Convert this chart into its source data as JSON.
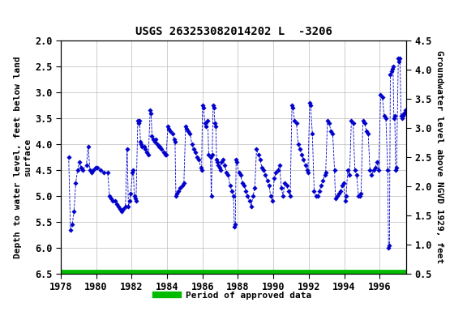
{
  "title": "USGS 263253082014202 L  -3206",
  "ylabel_left": "Depth to water level, feet below land\nsurface",
  "ylabel_right": "Groundwater level above NGVD 1929, feet",
  "xlim": [
    1978,
    1997.5
  ],
  "ylim_left": [
    6.5,
    2.0
  ],
  "ylim_right": [
    0.5,
    4.5
  ],
  "yticks_left": [
    2.0,
    2.5,
    3.0,
    3.5,
    4.0,
    4.5,
    5.0,
    5.5,
    6.0,
    6.5
  ],
  "yticks_right": [
    0.5,
    1.0,
    1.5,
    2.0,
    2.5,
    3.0,
    3.5,
    4.0,
    4.5
  ],
  "xticks": [
    1978,
    1980,
    1982,
    1984,
    1986,
    1988,
    1990,
    1992,
    1994,
    1996
  ],
  "data_color": "#0000cc",
  "legend_color": "#00bb00",
  "legend_label": "Period of approved data",
  "background_color": "#ffffff",
  "grid_color": "#bbbbbb",
  "title_fontsize": 10,
  "axis_fontsize": 8,
  "tick_fontsize": 8.5,
  "raw_data": [
    [
      1978.45,
      4.25
    ],
    [
      1978.55,
      5.65
    ],
    [
      1978.65,
      5.55
    ],
    [
      1978.75,
      5.3
    ],
    [
      1978.85,
      4.75
    ],
    [
      1978.95,
      4.5
    ],
    [
      1979.05,
      4.35
    ],
    [
      1979.15,
      4.45
    ],
    [
      1979.25,
      4.5
    ],
    [
      1979.45,
      4.4
    ],
    [
      1979.55,
      4.05
    ],
    [
      1979.65,
      4.5
    ],
    [
      1979.75,
      4.55
    ],
    [
      1979.85,
      4.5
    ],
    [
      1979.95,
      4.45
    ],
    [
      1980.05,
      4.45
    ],
    [
      1980.25,
      4.5
    ],
    [
      1980.45,
      4.55
    ],
    [
      1980.65,
      4.55
    ],
    [
      1980.75,
      5.0
    ],
    [
      1980.85,
      5.05
    ],
    [
      1980.95,
      5.1
    ],
    [
      1981.05,
      5.1
    ],
    [
      1981.15,
      5.15
    ],
    [
      1981.25,
      5.2
    ],
    [
      1981.35,
      5.25
    ],
    [
      1981.45,
      5.3
    ],
    [
      1981.55,
      5.25
    ],
    [
      1981.65,
      5.2
    ],
    [
      1981.75,
      4.1
    ],
    [
      1981.82,
      5.2
    ],
    [
      1981.88,
      5.1
    ],
    [
      1981.95,
      4.95
    ],
    [
      1982.05,
      4.55
    ],
    [
      1982.1,
      4.5
    ],
    [
      1982.15,
      5.0
    ],
    [
      1982.2,
      5.05
    ],
    [
      1982.25,
      5.1
    ],
    [
      1982.35,
      3.55
    ],
    [
      1982.4,
      3.6
    ],
    [
      1982.45,
      3.55
    ],
    [
      1982.5,
      3.95
    ],
    [
      1982.55,
      4.0
    ],
    [
      1982.6,
      4.05
    ],
    [
      1982.7,
      4.05
    ],
    [
      1982.75,
      4.1
    ],
    [
      1982.85,
      4.15
    ],
    [
      1982.95,
      4.2
    ],
    [
      1983.05,
      3.35
    ],
    [
      1983.1,
      3.4
    ],
    [
      1983.15,
      3.85
    ],
    [
      1983.2,
      3.9
    ],
    [
      1983.3,
      3.95
    ],
    [
      1983.35,
      3.9
    ],
    [
      1983.45,
      4.0
    ],
    [
      1983.55,
      4.05
    ],
    [
      1983.6,
      4.05
    ],
    [
      1983.7,
      4.1
    ],
    [
      1983.8,
      4.15
    ],
    [
      1983.9,
      4.2
    ],
    [
      1983.95,
      4.2
    ],
    [
      1984.05,
      3.65
    ],
    [
      1984.1,
      3.7
    ],
    [
      1984.2,
      3.75
    ],
    [
      1984.3,
      3.8
    ],
    [
      1984.4,
      3.9
    ],
    [
      1984.45,
      3.95
    ],
    [
      1984.5,
      5.0
    ],
    [
      1984.55,
      4.95
    ],
    [
      1984.65,
      4.9
    ],
    [
      1984.75,
      4.85
    ],
    [
      1984.85,
      4.8
    ],
    [
      1984.95,
      4.75
    ],
    [
      1985.05,
      3.65
    ],
    [
      1985.1,
      3.7
    ],
    [
      1985.2,
      3.75
    ],
    [
      1985.3,
      3.8
    ],
    [
      1985.4,
      4.0
    ],
    [
      1985.5,
      4.1
    ],
    [
      1985.6,
      4.15
    ],
    [
      1985.7,
      4.25
    ],
    [
      1985.8,
      4.3
    ],
    [
      1985.9,
      4.45
    ],
    [
      1985.95,
      4.5
    ],
    [
      1986.0,
      3.25
    ],
    [
      1986.05,
      3.3
    ],
    [
      1986.15,
      3.6
    ],
    [
      1986.2,
      3.65
    ],
    [
      1986.3,
      3.55
    ],
    [
      1986.35,
      4.2
    ],
    [
      1986.45,
      4.25
    ],
    [
      1986.5,
      5.0
    ],
    [
      1986.55,
      4.2
    ],
    [
      1986.6,
      3.25
    ],
    [
      1986.65,
      3.3
    ],
    [
      1986.7,
      3.6
    ],
    [
      1986.75,
      3.65
    ],
    [
      1986.8,
      4.3
    ],
    [
      1986.85,
      4.35
    ],
    [
      1986.9,
      4.4
    ],
    [
      1986.95,
      4.45
    ],
    [
      1987.0,
      4.5
    ],
    [
      1987.05,
      4.35
    ],
    [
      1987.15,
      4.3
    ],
    [
      1987.25,
      4.4
    ],
    [
      1987.35,
      4.55
    ],
    [
      1987.45,
      4.6
    ],
    [
      1987.55,
      4.8
    ],
    [
      1987.65,
      4.9
    ],
    [
      1987.75,
      5.0
    ],
    [
      1987.8,
      5.6
    ],
    [
      1987.85,
      5.55
    ],
    [
      1987.9,
      4.3
    ],
    [
      1987.95,
      4.35
    ],
    [
      1988.05,
      4.55
    ],
    [
      1988.15,
      4.6
    ],
    [
      1988.25,
      4.75
    ],
    [
      1988.35,
      4.8
    ],
    [
      1988.45,
      4.9
    ],
    [
      1988.55,
      5.0
    ],
    [
      1988.65,
      5.1
    ],
    [
      1988.75,
      5.2
    ],
    [
      1988.85,
      5.0
    ],
    [
      1988.95,
      4.85
    ],
    [
      1989.05,
      4.1
    ],
    [
      1989.15,
      4.2
    ],
    [
      1989.25,
      4.3
    ],
    [
      1989.35,
      4.45
    ],
    [
      1989.45,
      4.5
    ],
    [
      1989.55,
      4.6
    ],
    [
      1989.65,
      4.7
    ],
    [
      1989.75,
      4.8
    ],
    [
      1989.85,
      5.0
    ],
    [
      1989.95,
      5.1
    ],
    [
      1990.05,
      4.65
    ],
    [
      1990.15,
      4.55
    ],
    [
      1990.25,
      4.5
    ],
    [
      1990.35,
      4.4
    ],
    [
      1990.45,
      4.85
    ],
    [
      1990.55,
      5.0
    ],
    [
      1990.65,
      4.75
    ],
    [
      1990.75,
      4.8
    ],
    [
      1990.85,
      4.9
    ],
    [
      1990.95,
      5.0
    ],
    [
      1991.05,
      3.25
    ],
    [
      1991.1,
      3.3
    ],
    [
      1991.2,
      3.55
    ],
    [
      1991.3,
      3.6
    ],
    [
      1991.4,
      4.0
    ],
    [
      1991.5,
      4.1
    ],
    [
      1991.6,
      4.2
    ],
    [
      1991.7,
      4.3
    ],
    [
      1991.8,
      4.4
    ],
    [
      1991.9,
      4.5
    ],
    [
      1991.95,
      4.55
    ],
    [
      1992.05,
      3.2
    ],
    [
      1992.1,
      3.25
    ],
    [
      1992.2,
      3.8
    ],
    [
      1992.3,
      4.9
    ],
    [
      1992.4,
      5.0
    ],
    [
      1992.5,
      5.0
    ],
    [
      1992.6,
      4.9
    ],
    [
      1992.7,
      4.8
    ],
    [
      1992.8,
      4.7
    ],
    [
      1992.9,
      4.6
    ],
    [
      1992.95,
      4.55
    ],
    [
      1993.05,
      3.55
    ],
    [
      1993.15,
      3.6
    ],
    [
      1993.25,
      3.75
    ],
    [
      1993.35,
      3.8
    ],
    [
      1993.45,
      4.5
    ],
    [
      1993.5,
      5.05
    ],
    [
      1993.6,
      5.0
    ],
    [
      1993.7,
      4.95
    ],
    [
      1993.8,
      4.9
    ],
    [
      1993.9,
      4.8
    ],
    [
      1993.95,
      4.75
    ],
    [
      1994.05,
      5.1
    ],
    [
      1994.1,
      5.0
    ],
    [
      1994.2,
      4.5
    ],
    [
      1994.3,
      4.6
    ],
    [
      1994.4,
      3.55
    ],
    [
      1994.5,
      3.6
    ],
    [
      1994.6,
      4.5
    ],
    [
      1994.7,
      4.6
    ],
    [
      1994.8,
      5.0
    ],
    [
      1994.9,
      5.0
    ],
    [
      1994.95,
      4.95
    ],
    [
      1995.05,
      3.55
    ],
    [
      1995.15,
      3.6
    ],
    [
      1995.25,
      3.75
    ],
    [
      1995.35,
      3.8
    ],
    [
      1995.45,
      4.5
    ],
    [
      1995.55,
      4.6
    ],
    [
      1995.65,
      4.5
    ],
    [
      1995.75,
      4.45
    ],
    [
      1995.85,
      4.35
    ],
    [
      1995.95,
      4.5
    ],
    [
      1996.05,
      3.05
    ],
    [
      1996.15,
      3.1
    ],
    [
      1996.25,
      3.45
    ],
    [
      1996.35,
      3.5
    ],
    [
      1996.45,
      4.5
    ],
    [
      1996.5,
      6.0
    ],
    [
      1996.55,
      5.95
    ],
    [
      1996.6,
      2.65
    ],
    [
      1996.65,
      2.6
    ],
    [
      1996.7,
      2.55
    ],
    [
      1996.75,
      2.5
    ],
    [
      1996.8,
      3.5
    ],
    [
      1996.85,
      3.45
    ],
    [
      1996.9,
      4.5
    ],
    [
      1996.95,
      4.45
    ],
    [
      1997.05,
      2.35
    ],
    [
      1997.1,
      2.4
    ],
    [
      1997.15,
      2.35
    ],
    [
      1997.2,
      3.45
    ],
    [
      1997.25,
      3.5
    ],
    [
      1997.3,
      3.45
    ],
    [
      1997.35,
      3.4
    ],
    [
      1997.4,
      3.4
    ],
    [
      1997.45,
      3.35
    ]
  ]
}
